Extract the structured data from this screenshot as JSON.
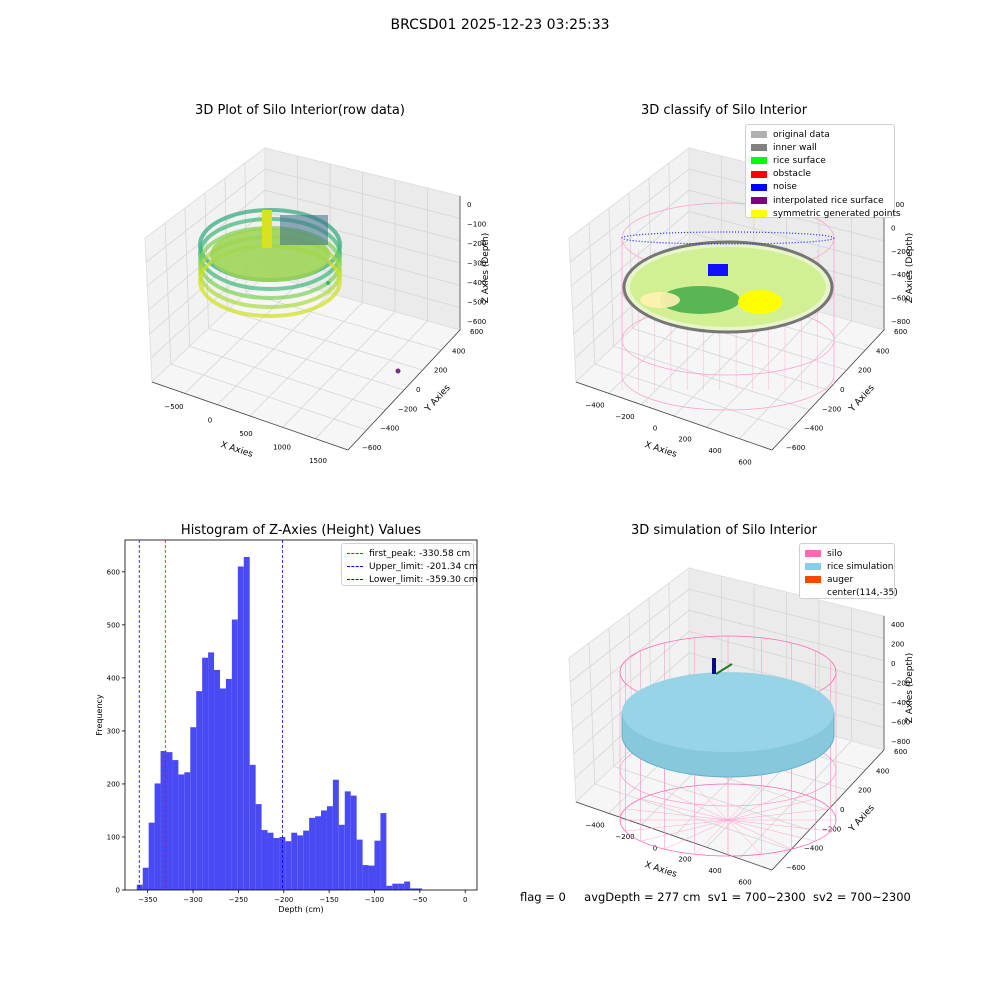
{
  "figure": {
    "title": "BRCSD01 2025-12-23 03:25:33",
    "footer": {
      "flag": "flag = 0",
      "avg_depth": "avgDepth = 277 cm",
      "sv1": "sv1 = 700~2300",
      "sv2": "sv2 = 700~2300"
    }
  },
  "chart_data": [
    {
      "type": "scatter",
      "title": "3D Plot of Silo Interior(row data)",
      "xlabel": "X Axies",
      "ylabel": "Y Axies",
      "zlabel": "Z Axies (Depth)",
      "x_ticks": [
        "−500",
        "0",
        "500",
        "1000",
        "1500"
      ],
      "y_ticks": [
        "−600",
        "−400",
        "−200",
        "0",
        "200",
        "400",
        "600"
      ],
      "z_ticks": [
        "−600",
        "−500",
        "−400",
        "−300",
        "−200",
        "−100",
        "0"
      ],
      "grid": true,
      "colormap": "viridis"
    },
    {
      "type": "scatter",
      "title": "3D classify of Silo Interior",
      "xlabel": "X Axies",
      "ylabel": "Y Axies",
      "zlabel": "Z Axies (Depth)",
      "x_ticks": [
        "−400",
        "−200",
        "0",
        "200",
        "400",
        "600"
      ],
      "y_ticks": [
        "−600",
        "−400",
        "−200",
        "0",
        "200",
        "400",
        "600"
      ],
      "z_ticks": [
        "−800",
        "−600",
        "−400",
        "−200",
        "0",
        "200"
      ],
      "z_ticks_partial": "00",
      "grid": true,
      "legend_position": "top-right",
      "legend": [
        {
          "label": "original data",
          "color": "#b0b0b0"
        },
        {
          "label": "inner wall",
          "color": "#808080"
        },
        {
          "label": "rice surface",
          "color": "#00ff00"
        },
        {
          "label": "obstacle",
          "color": "#ff0000"
        },
        {
          "label": "noise",
          "color": "#0000ff"
        },
        {
          "label": "interpolated rice surface",
          "color": "#800080"
        },
        {
          "label": "symmetric generated points",
          "color": "#ffff00"
        }
      ]
    },
    {
      "type": "bar",
      "title": "Histogram of Z-Axies (Height) Values",
      "xlabel": "Depth (cm)",
      "ylabel": "Frequency",
      "xlim": [
        -375,
        13
      ],
      "ylim": [
        0,
        660
      ],
      "x_ticks": [
        -350,
        -300,
        -250,
        -200,
        -150,
        -100,
        -50,
        0
      ],
      "x_tick_labels": [
        "−350",
        "−300",
        "−250",
        "−200",
        "−150",
        "−100",
        "−50",
        "0"
      ],
      "y_ticks": [
        0,
        100,
        200,
        300,
        400,
        500,
        600
      ],
      "y_tick_labels": [
        "0",
        "100",
        "200",
        "300",
        "400",
        "500",
        "600"
      ],
      "bar_color": "#4a4af5",
      "bin_start": -362,
      "bin_width": 6.55,
      "values": [
        10,
        42,
        127,
        201,
        262,
        260,
        245,
        218,
        222,
        307,
        375,
        438,
        448,
        415,
        380,
        398,
        510,
        610,
        628,
        236,
        162,
        113,
        108,
        98,
        100,
        92,
        108,
        103,
        112,
        136,
        139,
        150,
        158,
        208,
        123,
        186,
        178,
        95,
        47,
        46,
        93,
        145,
        8,
        12,
        12,
        16,
        3,
        3
      ],
      "lines": [
        {
          "label": "first_peak: -330.58 cm",
          "x": -330.58,
          "color": "#ff0000"
        },
        {
          "label": "Upper_limit: -201.34 cm",
          "x": -201.34,
          "color": "#0000ff"
        },
        {
          "label": "Lower_limit: -359.30 cm",
          "x": -359.3,
          "color": "#0000ff"
        }
      ],
      "legend_position": "top-right"
    },
    {
      "type": "scatter",
      "title": "3D simulation of Silo Interior",
      "xlabel": "X Axies",
      "ylabel": "Y Axies",
      "zlabel": "Z Axies (Depth)",
      "x_ticks": [
        "−400",
        "−200",
        "0",
        "200",
        "400",
        "600"
      ],
      "y_ticks": [
        "−600",
        "−400",
        "−200",
        "0",
        "200",
        "400",
        "600"
      ],
      "z_ticks": [
        "−800",
        "−600",
        "−400",
        "−200",
        "0",
        "200",
        "400"
      ],
      "grid": true,
      "legend_position": "top-right",
      "legend": [
        {
          "label": "silo",
          "color": "#ff69b4"
        },
        {
          "label": "rice simulation",
          "color": "#87ceeb"
        },
        {
          "label": "auger",
          "color": "#ff4500"
        },
        {
          "label": "center(114,-35)",
          "color": ""
        }
      ]
    }
  ]
}
